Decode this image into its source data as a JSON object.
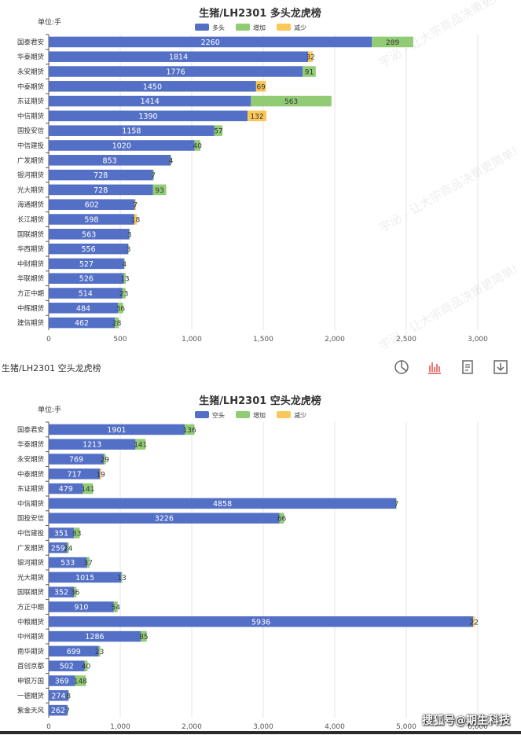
{
  "chart_data": [
    {
      "type": "bar",
      "title": "生猪/LH2301 多头龙虎榜",
      "unit_label": "单位:手",
      "legend": [
        "多头",
        "增加",
        "减少"
      ],
      "colors": {
        "main": "#5470c6",
        "increase": "#91cc75",
        "decrease": "#fac858"
      },
      "xlim": [
        0,
        3000
      ],
      "xticks": [
        "0",
        "500",
        "1,000",
        "1,500",
        "2,000",
        "2,500",
        "3,000"
      ],
      "categories": [
        "国泰君安",
        "华泰期货",
        "永安期货",
        "中泰期货",
        "东证期货",
        "中信期货",
        "国投安信",
        "中信建投",
        "广发期货",
        "银河期货",
        "光大期货",
        "海通期货",
        "长江期货",
        "国联期货",
        "华西期货",
        "中财期货",
        "华联期货",
        "方正中期",
        "中辉期货",
        "建信期货"
      ],
      "series": [
        {
          "name": "多头",
          "values": [
            2260,
            1814,
            1776,
            1450,
            1414,
            1390,
            1158,
            1020,
            853,
            728,
            728,
            602,
            598,
            563,
            556,
            527,
            526,
            514,
            484,
            462
          ]
        },
        {
          "name": "增加",
          "values": [
            289,
            0,
            91,
            0,
            563,
            0,
            57,
            40,
            4,
            7,
            93,
            0,
            0,
            3,
            3,
            4,
            13,
            23,
            36,
            28
          ]
        },
        {
          "name": "减少",
          "values": [
            0,
            32,
            0,
            69,
            0,
            132,
            0,
            0,
            0,
            0,
            0,
            7,
            18,
            0,
            0,
            0,
            0,
            0,
            0,
            0
          ]
        }
      ]
    },
    {
      "type": "bar",
      "title": "生猪/LH2301 空头龙虎榜",
      "unit_label": "单位:手",
      "legend": [
        "空头",
        "增加",
        "减少"
      ],
      "colors": {
        "main": "#5470c6",
        "increase": "#91cc75",
        "decrease": "#fac858"
      },
      "xlim": [
        0,
        6000
      ],
      "xticks": [
        "0",
        "1,000",
        "2,000",
        "3,000",
        "4,000",
        "5,000",
        "6,000"
      ],
      "categories": [
        "国泰君安",
        "华泰期货",
        "永安期货",
        "中泰期货",
        "东证期货",
        "中信期货",
        "国投安信",
        "中信建投",
        "广发期货",
        "银河期货",
        "光大期货",
        "国联期货",
        "方正中期",
        "中粮期货",
        "中州期货",
        "南华期货",
        "首创京都",
        "申银万国",
        "一德期货",
        "紫金天风"
      ],
      "series": [
        {
          "name": "空头",
          "values": [
            1901,
            1213,
            769,
            717,
            479,
            4858,
            3226,
            351,
            259,
            533,
            1015,
            352,
            910,
            5936,
            1286,
            699,
            502,
            369,
            274,
            262
          ]
        },
        {
          "name": "增加",
          "values": [
            136,
            141,
            29,
            0,
            141,
            7,
            66,
            83,
            24,
            37,
            13,
            36,
            54,
            0,
            85,
            23,
            40,
            148,
            8,
            7
          ]
        },
        {
          "name": "减少",
          "values": [
            0,
            0,
            0,
            19,
            0,
            0,
            0,
            0,
            0,
            0,
            0,
            0,
            0,
            22,
            0,
            0,
            0,
            0,
            0,
            0
          ]
        }
      ]
    }
  ],
  "caption": "生猪/LH2301 空头龙虎榜",
  "toolbar": {
    "icons": [
      "pie-chart-icon",
      "bar-chart-icon",
      "data-view-icon",
      "download-icon"
    ]
  },
  "watermark_text": "搜狐号@期生科技",
  "background_watermark": "宇泌 - 让大宗商品决策更简单!"
}
